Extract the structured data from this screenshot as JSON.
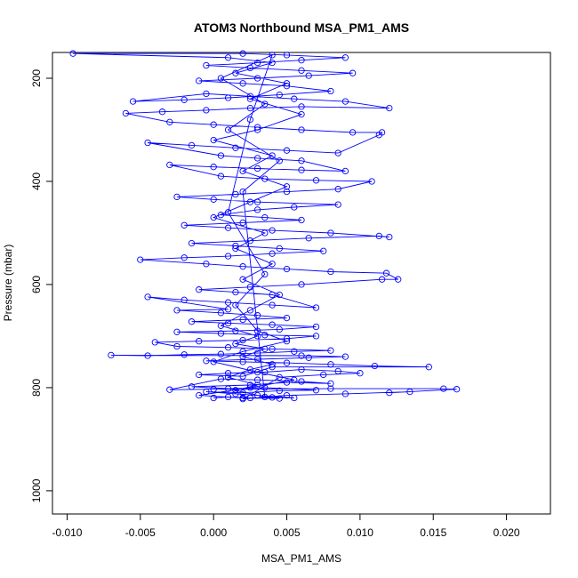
{
  "chart_data": {
    "type": "scatter",
    "title": "ATOM3 Northbound MSA_PM1_AMS",
    "xlabel": "MSA_PM1_AMS",
    "ylabel": "Pressure (mbar)",
    "xlim": [
      -0.011,
      0.023
    ],
    "ylim": [
      1045,
      150
    ],
    "y_inverted": true,
    "x_ticks": [
      -0.01,
      -0.005,
      0.0,
      0.005,
      0.01,
      0.015,
      0.02
    ],
    "x_tick_labels": [
      "-0.010",
      "-0.005",
      "0.000",
      "0.005",
      "0.010",
      "0.015",
      "0.020"
    ],
    "y_ticks": [
      200,
      400,
      600,
      800,
      1000
    ],
    "y_tick_labels": [
      "200",
      "400",
      "600",
      "800",
      "1000"
    ],
    "grid": false,
    "series": [
      {
        "color": "#0000ff",
        "marker": "open-circle",
        "connected": true,
        "points": [
          [
            0.0,
            820
          ],
          [
            0.001,
            818
          ],
          [
            0.0025,
            820
          ],
          [
            0.004,
            819
          ],
          [
            0.0055,
            820
          ],
          [
            0.003,
            815
          ],
          [
            0.0015,
            812
          ],
          [
            -0.0005,
            808
          ],
          [
            0.002,
            810
          ],
          [
            0.0045,
            806
          ],
          [
            0.007,
            805
          ],
          [
            0.0035,
            800
          ],
          [
            0.001,
            802
          ],
          [
            -0.0015,
            798
          ],
          [
            0.0025,
            795
          ],
          [
            0.005,
            790
          ],
          [
            0.008,
            792
          ],
          [
            0.006,
            788
          ],
          [
            0.003,
            785
          ],
          [
            0.0005,
            783
          ],
          [
            -0.003,
            804
          ],
          [
            0.0,
            803
          ],
          [
            0.008,
            802
          ],
          [
            0.0157,
            802
          ],
          [
            0.0166,
            803
          ],
          [
            0.012,
            810
          ],
          [
            0.0134,
            808
          ],
          [
            0.009,
            812
          ],
          [
            0.005,
            815
          ],
          [
            0.002,
            822
          ],
          [
            0.0045,
            780
          ],
          [
            0.0075,
            775
          ],
          [
            0.01,
            772
          ],
          [
            0.0085,
            768
          ],
          [
            0.006,
            765
          ],
          [
            0.0035,
            770
          ],
          [
            0.001,
            772
          ],
          [
            -0.001,
            775
          ],
          [
            0.002,
            778
          ],
          [
            0.004,
            760
          ],
          [
            0.0147,
            760
          ],
          [
            0.011,
            758
          ],
          [
            0.008,
            755
          ],
          [
            0.005,
            752
          ],
          [
            0.002,
            750
          ],
          [
            -0.0005,
            748
          ],
          [
            0.003,
            745
          ],
          [
            0.0065,
            742
          ],
          [
            0.009,
            740
          ],
          [
            0.006,
            738
          ],
          [
            -0.007,
            737
          ],
          [
            -0.0045,
            738
          ],
          [
            -0.002,
            736
          ],
          [
            0.0005,
            735
          ],
          [
            0.003,
            733
          ],
          [
            0.0055,
            730
          ],
          [
            0.008,
            728
          ],
          [
            0.004,
            725
          ],
          [
            0.001,
            722
          ],
          [
            -0.0025,
            720
          ],
          [
            -0.004,
            712
          ],
          [
            -0.001,
            710
          ],
          [
            0.002,
            708
          ],
          [
            0.005,
            705
          ],
          [
            0.007,
            700
          ],
          [
            0.0035,
            698
          ],
          [
            0.0005,
            695
          ],
          [
            -0.0025,
            692
          ],
          [
            0.0015,
            690
          ],
          [
            0.0045,
            687
          ],
          [
            0.007,
            682
          ],
          [
            0.004,
            678
          ],
          [
            0.001,
            675
          ],
          [
            -0.0015,
            672
          ],
          [
            0.002,
            668
          ],
          [
            0.005,
            665
          ],
          [
            0.003,
            660
          ],
          [
            0.0005,
            655
          ],
          [
            -0.0025,
            650
          ],
          [
            0.001,
            648
          ],
          [
            -0.0045,
            624
          ],
          [
            -0.002,
            630
          ],
          [
            0.001,
            635
          ],
          [
            0.004,
            640
          ],
          [
            0.007,
            645
          ],
          [
            0.004,
            620
          ],
          [
            0.0015,
            615
          ],
          [
            -0.001,
            610
          ],
          [
            0.0025,
            605
          ],
          [
            0.006,
            600
          ],
          [
            0.0115,
            590
          ],
          [
            0.0126,
            590
          ],
          [
            0.0118,
            578
          ],
          [
            0.008,
            575
          ],
          [
            0.005,
            570
          ],
          [
            0.002,
            565
          ],
          [
            -0.0005,
            560
          ],
          [
            -0.005,
            552
          ],
          [
            -0.002,
            548
          ],
          [
            0.001,
            545
          ],
          [
            0.004,
            540
          ],
          [
            0.0075,
            535
          ],
          [
            0.0045,
            530
          ],
          [
            0.0015,
            525
          ],
          [
            -0.0015,
            520
          ],
          [
            0.0025,
            515
          ],
          [
            0.0065,
            510
          ],
          [
            0.0113,
            506
          ],
          [
            0.012,
            508
          ],
          [
            0.008,
            500
          ],
          [
            0.004,
            495
          ],
          [
            0.001,
            490
          ],
          [
            -0.002,
            485
          ],
          [
            0.002,
            480
          ],
          [
            0.006,
            475
          ],
          [
            0.0035,
            470
          ],
          [
            0.0005,
            465
          ],
          [
            0.003,
            455
          ],
          [
            0.0055,
            450
          ],
          [
            0.0085,
            445
          ],
          [
            0.003,
            440
          ],
          [
            0.0,
            435
          ],
          [
            -0.0025,
            430
          ],
          [
            0.0015,
            425
          ],
          [
            0.005,
            420
          ],
          [
            0.0085,
            415
          ],
          [
            0.0108,
            400
          ],
          [
            0.007,
            398
          ],
          [
            0.0035,
            395
          ],
          [
            0.0005,
            390
          ],
          [
            -0.003,
            368
          ],
          [
            0.0,
            372
          ],
          [
            0.003,
            375
          ],
          [
            0.006,
            378
          ],
          [
            0.009,
            380
          ],
          [
            0.006,
            360
          ],
          [
            0.003,
            355
          ],
          [
            0.0005,
            350
          ],
          [
            -0.0045,
            325
          ],
          [
            -0.0015,
            330
          ],
          [
            0.0015,
            335
          ],
          [
            0.005,
            340
          ],
          [
            0.0085,
            345
          ],
          [
            0.0113,
            310
          ],
          [
            0.0115,
            305
          ],
          [
            0.0095,
            305
          ],
          [
            0.006,
            300
          ],
          [
            0.003,
            295
          ],
          [
            0.0,
            290
          ],
          [
            -0.003,
            285
          ],
          [
            -0.006,
            268
          ],
          [
            -0.0035,
            265
          ],
          [
            -0.0005,
            262
          ],
          [
            0.0025,
            258
          ],
          [
            0.006,
            255
          ],
          [
            0.012,
            258
          ],
          [
            0.009,
            245
          ],
          [
            0.0055,
            240
          ],
          [
            0.0025,
            235
          ],
          [
            -0.0005,
            230
          ],
          [
            -0.0055,
            245
          ],
          [
            -0.002,
            242
          ],
          [
            0.001,
            238
          ],
          [
            0.0045,
            232
          ],
          [
            0.008,
            225
          ],
          [
            0.005,
            215
          ],
          [
            0.002,
            210
          ],
          [
            -0.001,
            205
          ],
          [
            0.003,
            200
          ],
          [
            0.0065,
            195
          ],
          [
            0.0095,
            190
          ],
          [
            0.006,
            185
          ],
          [
            0.0025,
            180
          ],
          [
            -0.0005,
            175
          ],
          [
            0.003,
            170
          ],
          [
            0.006,
            165
          ],
          [
            0.009,
            160
          ],
          [
            0.005,
            155
          ],
          [
            0.002,
            152
          ],
          [
            -0.0096,
            152
          ],
          [
            0.001,
            160
          ],
          [
            0.004,
            170
          ],
          [
            0.0015,
            190
          ],
          [
            0.005,
            210
          ],
          [
            0.0025,
            240
          ],
          [
            0.006,
            270
          ],
          [
            0.003,
            300
          ],
          [
            0.0,
            320
          ],
          [
            0.004,
            350
          ],
          [
            0.002,
            380
          ],
          [
            0.005,
            410
          ],
          [
            0.0025,
            440
          ],
          [
            0.0,
            470
          ],
          [
            0.0035,
            500
          ],
          [
            0.0015,
            530
          ],
          [
            0.004,
            560
          ],
          [
            0.002,
            590
          ],
          [
            0.0045,
            620
          ],
          [
            0.0025,
            650
          ],
          [
            0.0005,
            680
          ],
          [
            0.003,
            700
          ],
          [
            0.0015,
            715
          ],
          [
            0.0035,
            725
          ],
          [
            0.002,
            740
          ],
          [
            0.004,
            755
          ],
          [
            0.0025,
            765
          ],
          [
            0.001,
            780
          ],
          [
            0.003,
            795
          ],
          [
            0.0015,
            805
          ],
          [
            0.0035,
            818
          ],
          [
            0.002,
            420
          ],
          [
            0.0045,
            360
          ],
          [
            0.001,
            300
          ],
          [
            0.0035,
            250
          ],
          [
            0.0005,
            200
          ],
          [
            0.004,
            155
          ],
          [
            0.0025,
            280
          ],
          [
            0.001,
            460
          ],
          [
            0.0035,
            580
          ],
          [
            0.0015,
            640
          ],
          [
            0.003,
            690
          ],
          [
            0.005,
            710
          ],
          [
            0.002,
            730
          ],
          [
            0.0,
            750
          ],
          [
            0.003,
            770
          ],
          [
            0.0055,
            785
          ],
          [
            0.0025,
            800
          ],
          [
            -0.001,
            815
          ],
          [
            0.002,
            820
          ],
          [
            0.0045,
            821
          ]
        ]
      }
    ]
  }
}
